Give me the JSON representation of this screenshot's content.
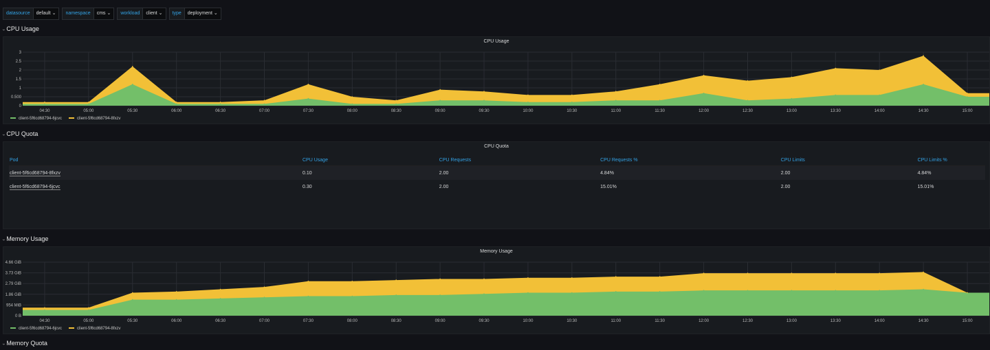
{
  "variables": [
    {
      "label": "datasource",
      "value": "default"
    },
    {
      "label": "namespace",
      "value": "cms"
    },
    {
      "label": "workload",
      "value": "client"
    },
    {
      "label": "type",
      "value": "deployment"
    }
  ],
  "rows": {
    "cpu_usage": "CPU Usage",
    "cpu_quota": "CPU Quota",
    "memory_usage": "Memory Usage",
    "memory_quota": "Memory Quota"
  },
  "cpu_panel": {
    "title": "CPU Usage",
    "legend": [
      {
        "name": "client-5f6cd68794-6jcvc",
        "color": "#73bf69"
      },
      {
        "name": "client-5f6cd68794-8fxzv",
        "color": "#f2c037"
      }
    ]
  },
  "quota_panel": {
    "title": "CPU Quota",
    "columns": [
      "Pod",
      "CPU Usage",
      "CPU Requests",
      "CPU Requests %",
      "CPU Limits",
      "CPU Limits %"
    ],
    "rows": [
      [
        "client-5f6cd68794-8fxzv",
        "0.10",
        "2.00",
        "4.84%",
        "2.00",
        "4.84%"
      ],
      [
        "client-5f6cd68794-6jcvc",
        "0.30",
        "2.00",
        "15.01%",
        "2.00",
        "15.01%"
      ]
    ]
  },
  "memory_panel": {
    "title": "Memory Usage",
    "legend": [
      {
        "name": "client-5f6cd68794-6jcvc",
        "color": "#73bf69"
      },
      {
        "name": "client-5f6cd68794-8fxzv",
        "color": "#f2c037"
      }
    ]
  },
  "chart_data": [
    {
      "type": "area",
      "title": "CPU Usage",
      "x": [
        "04:30",
        "05:00",
        "05:30",
        "06:00",
        "06:30",
        "07:00",
        "07:30",
        "08:00",
        "08:30",
        "09:00",
        "09:30",
        "10:00",
        "10:30",
        "11:00",
        "11:30",
        "12:00",
        "12:30",
        "13:00",
        "13:30",
        "14:00",
        "14:30",
        "15:00"
      ],
      "y_ticks": [
        "0",
        "0.500",
        "1",
        "1.5",
        "2",
        "2.5",
        "3"
      ],
      "ylim": [
        0,
        3
      ],
      "stacked": true,
      "series": [
        {
          "name": "client-5f6cd68794-6jcvc",
          "color": "#73bf69",
          "values": [
            0.1,
            0.1,
            1.2,
            0.1,
            0.1,
            0.1,
            0.4,
            0.1,
            0.1,
            0.3,
            0.3,
            0.2,
            0.2,
            0.3,
            0.3,
            0.7,
            0.3,
            0.4,
            0.6,
            0.6,
            1.2,
            0.5
          ]
        },
        {
          "name": "client-5f6cd68794-8fxzv",
          "color": "#f2c037",
          "values": [
            0.1,
            0.1,
            1.0,
            0.1,
            0.1,
            0.2,
            0.8,
            0.4,
            0.2,
            0.6,
            0.5,
            0.4,
            0.4,
            0.5,
            0.9,
            1.0,
            1.1,
            1.2,
            1.5,
            1.4,
            1.6,
            0.2
          ]
        }
      ]
    },
    {
      "type": "area",
      "title": "Memory Usage",
      "x": [
        "04:30",
        "05:00",
        "05:30",
        "06:00",
        "06:30",
        "07:00",
        "07:30",
        "08:00",
        "08:30",
        "09:00",
        "09:30",
        "10:00",
        "10:30",
        "11:00",
        "11:30",
        "12:00",
        "12:30",
        "13:00",
        "13:30",
        "14:00",
        "14:30",
        "15:00"
      ],
      "y_ticks": [
        "0 B",
        "954 MiB",
        "1.86 GiB",
        "2.79 GiB",
        "3.73 GiB",
        "4.66 GiB"
      ],
      "ylim": [
        0,
        4.66
      ],
      "stacked": true,
      "series": [
        {
          "name": "client-5f6cd68794-6jcvc",
          "color": "#73bf69",
          "values": [
            0.5,
            0.5,
            1.4,
            1.4,
            1.5,
            1.6,
            1.7,
            1.7,
            1.8,
            1.8,
            1.9,
            2.0,
            2.0,
            2.1,
            2.1,
            2.2,
            2.2,
            2.2,
            2.2,
            2.2,
            2.3,
            2.0
          ]
        },
        {
          "name": "client-5f6cd68794-8fxzv",
          "color": "#f2c037",
          "values": [
            0.2,
            0.2,
            0.6,
            0.7,
            0.8,
            0.9,
            1.3,
            1.3,
            1.3,
            1.4,
            1.3,
            1.3,
            1.3,
            1.3,
            1.3,
            1.5,
            1.5,
            1.5,
            1.5,
            1.5,
            1.5,
            0.0
          ]
        }
      ]
    }
  ]
}
